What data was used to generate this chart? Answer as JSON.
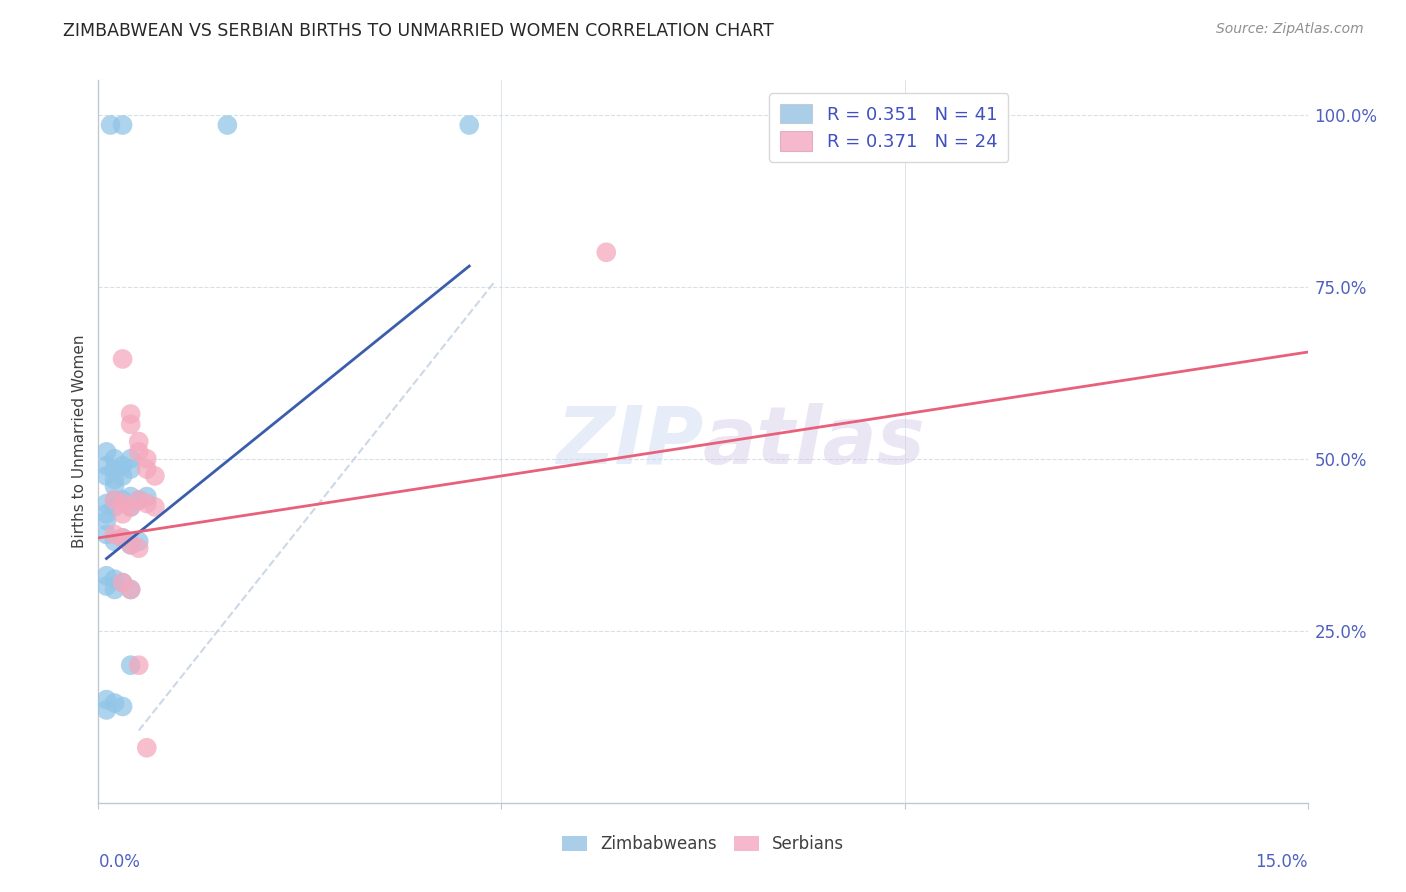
{
  "title": "ZIMBABWEAN VS SERBIAN BIRTHS TO UNMARRIED WOMEN CORRELATION CHART",
  "source": "Source: ZipAtlas.com",
  "ylabel": "Births to Unmarried Women",
  "ytick_labels": [
    "25.0%",
    "50.0%",
    "75.0%",
    "100.0%"
  ],
  "ytick_values": [
    0.25,
    0.5,
    0.75,
    1.0
  ],
  "xlim": [
    0.0,
    0.15
  ],
  "ylim": [
    0.0,
    1.05
  ],
  "watermark": "ZIPatlas",
  "zim_color": "#92c5e8",
  "serb_color": "#f5a8be",
  "zim_line_color": "#3a5dac",
  "serb_line_color": "#e8607a",
  "dash_line_color": "#c0cfe0",
  "grid_color": "#d8dfe8",
  "background_color": "#ffffff",
  "legend_zim_color": "#aacde8",
  "legend_serb_color": "#f5b8cc",
  "zim_scatter": [
    [
      0.0015,
      0.985
    ],
    [
      0.003,
      0.985
    ],
    [
      0.016,
      0.985
    ],
    [
      0.046,
      0.985
    ],
    [
      0.001,
      0.51
    ],
    [
      0.001,
      0.49
    ],
    [
      0.001,
      0.475
    ],
    [
      0.002,
      0.5
    ],
    [
      0.002,
      0.485
    ],
    [
      0.002,
      0.47
    ],
    [
      0.002,
      0.46
    ],
    [
      0.003,
      0.49
    ],
    [
      0.003,
      0.475
    ],
    [
      0.004,
      0.5
    ],
    [
      0.004,
      0.485
    ],
    [
      0.001,
      0.435
    ],
    [
      0.001,
      0.42
    ],
    [
      0.001,
      0.41
    ],
    [
      0.002,
      0.44
    ],
    [
      0.002,
      0.43
    ],
    [
      0.003,
      0.44
    ],
    [
      0.004,
      0.445
    ],
    [
      0.004,
      0.43
    ],
    [
      0.005,
      0.44
    ],
    [
      0.006,
      0.445
    ],
    [
      0.001,
      0.39
    ],
    [
      0.002,
      0.38
    ],
    [
      0.003,
      0.385
    ],
    [
      0.004,
      0.375
    ],
    [
      0.005,
      0.38
    ],
    [
      0.001,
      0.33
    ],
    [
      0.001,
      0.315
    ],
    [
      0.002,
      0.325
    ],
    [
      0.002,
      0.31
    ],
    [
      0.003,
      0.32
    ],
    [
      0.004,
      0.31
    ],
    [
      0.001,
      0.15
    ],
    [
      0.001,
      0.135
    ],
    [
      0.002,
      0.145
    ],
    [
      0.003,
      0.14
    ],
    [
      0.004,
      0.2
    ]
  ],
  "serb_scatter": [
    [
      0.003,
      0.645
    ],
    [
      0.004,
      0.565
    ],
    [
      0.004,
      0.55
    ],
    [
      0.005,
      0.525
    ],
    [
      0.005,
      0.51
    ],
    [
      0.006,
      0.5
    ],
    [
      0.006,
      0.485
    ],
    [
      0.007,
      0.475
    ],
    [
      0.002,
      0.44
    ],
    [
      0.003,
      0.435
    ],
    [
      0.003,
      0.42
    ],
    [
      0.004,
      0.43
    ],
    [
      0.005,
      0.44
    ],
    [
      0.006,
      0.435
    ],
    [
      0.007,
      0.43
    ],
    [
      0.002,
      0.39
    ],
    [
      0.003,
      0.385
    ],
    [
      0.004,
      0.375
    ],
    [
      0.005,
      0.37
    ],
    [
      0.003,
      0.32
    ],
    [
      0.004,
      0.31
    ],
    [
      0.005,
      0.2
    ],
    [
      0.006,
      0.08
    ],
    [
      0.063,
      0.8
    ]
  ],
  "zim_line": {
    "x0": 0.001,
    "y0": 0.355,
    "x1": 0.046,
    "y1": 0.78
  },
  "serb_line": {
    "x0": 0.0,
    "y0": 0.385,
    "x1": 0.15,
    "y1": 0.655
  },
  "dash_line": {
    "x0": 0.005,
    "y0": 0.105,
    "x1": 0.049,
    "y1": 0.755
  }
}
